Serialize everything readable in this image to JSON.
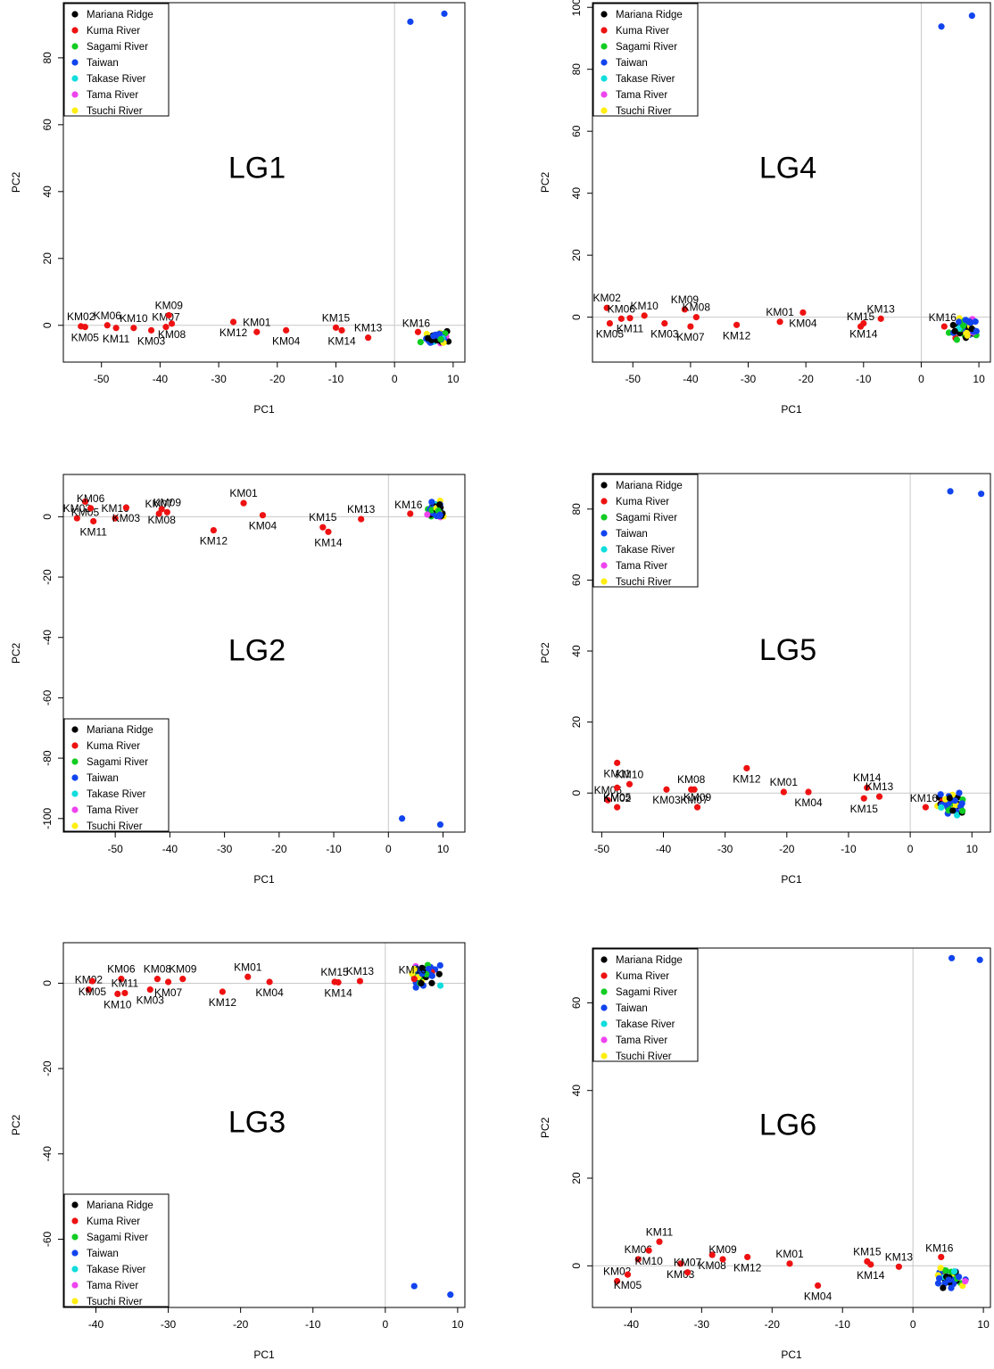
{
  "legend_labels": [
    "Mariana Ridge",
    "Kuma River",
    "Sagami River",
    "Taiwan",
    "Takase River",
    "Tama River",
    "Tsuchi River"
  ],
  "legend_colors": [
    "#000000",
    "#ee1111",
    "#11cc22",
    "#1144ee",
    "#11dddd",
    "#ee44ee",
    "#ffee11"
  ],
  "chart_data": [
    {
      "type": "scatter",
      "title": "LG1",
      "xlabel": "PC1",
      "ylabel": "PC2",
      "xlim": [
        -56.5,
        12
      ],
      "ylim": [
        -11,
        96.5
      ],
      "xticks": [
        -50,
        -40,
        -30,
        -20,
        -10,
        0,
        10
      ],
      "yticks": [
        0,
        20,
        40,
        60,
        80
      ],
      "legend_position": "top-left",
      "kuma": [
        {
          "name": "KM02",
          "x": -53.5,
          "y": -0.3
        },
        {
          "name": "KM05",
          "x": -52.8,
          "y": -0.5
        },
        {
          "name": "KM06",
          "x": -49,
          "y": 0
        },
        {
          "name": "KM11",
          "x": -47.5,
          "y": -0.8
        },
        {
          "name": "KM10",
          "x": -44.5,
          "y": -0.8
        },
        {
          "name": "KM03",
          "x": -41.5,
          "y": -1.5
        },
        {
          "name": "KM07",
          "x": -39,
          "y": -0.5
        },
        {
          "name": "KM08",
          "x": -38,
          "y": 0.5
        },
        {
          "name": "KM09",
          "x": -38.5,
          "y": 3
        },
        {
          "name": "KM12",
          "x": -27.5,
          "y": 1
        },
        {
          "name": "KM01",
          "x": -23.5,
          "y": -2
        },
        {
          "name": "KM04",
          "x": -18.5,
          "y": -1.5
        },
        {
          "name": "KM15",
          "x": -10,
          "y": -0.7
        },
        {
          "name": "KM14",
          "x": -9,
          "y": -1.5
        },
        {
          "name": "KM13",
          "x": -4.5,
          "y": -3.7
        },
        {
          "name": "KM16",
          "x": 4,
          "y": -2
        }
      ],
      "outliers": [
        {
          "x": 2.7,
          "y": 90.8
        },
        {
          "x": 8.5,
          "y": 93.2
        }
      ],
      "cluster_center": [
        7,
        -3.5
      ],
      "cluster_spread": [
        2.7,
        2.5
      ]
    },
    {
      "type": "scatter",
      "title": "LG2",
      "xlabel": "PC1",
      "ylabel": "PC2",
      "xlim": [
        -59.5,
        14
      ],
      "ylim": [
        -104.5,
        14
      ],
      "xticks": [
        -50,
        -40,
        -30,
        -20,
        -10,
        0,
        10
      ],
      "yticks": [
        0,
        -20,
        -40,
        -60,
        -80,
        -100
      ],
      "legend_position": "bottom-left",
      "kuma": [
        {
          "name": "KM02",
          "x": -57,
          "y": -0.5
        },
        {
          "name": "KM05",
          "x": -55.5,
          "y": 5
        },
        {
          "name": "KM06",
          "x": -54.5,
          "y": 2.8
        },
        {
          "name": "KM11",
          "x": -54,
          "y": -1.5
        },
        {
          "name": "KM10",
          "x": -50,
          "y": -0.5
        },
        {
          "name": "KM03",
          "x": -48,
          "y": 3
        },
        {
          "name": "KM07",
          "x": -42,
          "y": 1
        },
        {
          "name": "KM08",
          "x": -41.5,
          "y": 2.5
        },
        {
          "name": "KM09",
          "x": -40.5,
          "y": 1.5
        },
        {
          "name": "KM12",
          "x": -32,
          "y": -4.5
        },
        {
          "name": "KM01",
          "x": -26.5,
          "y": 4.5
        },
        {
          "name": "KM04",
          "x": -23,
          "y": 0.5
        },
        {
          "name": "KM15",
          "x": -12,
          "y": -3.5
        },
        {
          "name": "KM14",
          "x": -11,
          "y": -5
        },
        {
          "name": "KM13",
          "x": -5,
          "y": -0.8
        },
        {
          "name": "KM16",
          "x": 4,
          "y": 1
        }
      ],
      "outliers": [
        {
          "x": 2.5,
          "y": -100
        },
        {
          "x": 9.5,
          "y": -102
        }
      ],
      "cluster_center": [
        8.7,
        2.5
      ],
      "cluster_spread": [
        2.2,
        4.5
      ]
    },
    {
      "type": "scatter",
      "title": "LG3",
      "xlabel": "PC1",
      "ylabel": "PC2",
      "xlim": [
        -44.5,
        11
      ],
      "ylim": [
        -76,
        9.5
      ],
      "xticks": [
        -40,
        -30,
        -20,
        -10,
        0,
        10
      ],
      "yticks": [
        0,
        -20,
        -40,
        -60
      ],
      "legend_position": "bottom-left",
      "kuma": [
        {
          "name": "KM02",
          "x": -41,
          "y": -1.5
        },
        {
          "name": "KM05",
          "x": -40.5,
          "y": 0.5
        },
        {
          "name": "KM06",
          "x": -36.5,
          "y": 1
        },
        {
          "name": "KM10",
          "x": -37,
          "y": -2.5
        },
        {
          "name": "KM11",
          "x": -36,
          "y": -2.3
        },
        {
          "name": "KM03",
          "x": -32.5,
          "y": -1.5
        },
        {
          "name": "KM08",
          "x": -31.5,
          "y": 1
        },
        {
          "name": "KM07",
          "x": -30,
          "y": 0.3
        },
        {
          "name": "KM09",
          "x": -28,
          "y": 1
        },
        {
          "name": "KM12",
          "x": -22.5,
          "y": -2
        },
        {
          "name": "KM01",
          "x": -19,
          "y": 1.5
        },
        {
          "name": "KM04",
          "x": -16,
          "y": 0.3
        },
        {
          "name": "KM15",
          "x": -7,
          "y": 0.3
        },
        {
          "name": "KM14",
          "x": -6.5,
          "y": 0.2
        },
        {
          "name": "KM13",
          "x": -3.5,
          "y": 0.5
        },
        {
          "name": "KM16",
          "x": 4,
          "y": 1
        }
      ],
      "outliers": [
        {
          "x": 4,
          "y": -71
        },
        {
          "x": 9,
          "y": -73
        }
      ],
      "cluster_center": [
        5.5,
        2
      ],
      "cluster_spread": [
        2.3,
        3.5
      ]
    },
    {
      "type": "scatter",
      "title": "LG4",
      "xlabel": "PC1",
      "ylabel": "PC2",
      "xlim": [
        -57,
        12
      ],
      "ylim": [
        -14.5,
        101.5
      ],
      "xticks": [
        -50,
        -40,
        -30,
        -20,
        -10,
        0,
        10
      ],
      "yticks": [
        0,
        20,
        40,
        60,
        80,
        100
      ],
      "legend_position": "top-left",
      "kuma": [
        {
          "name": "KM02",
          "x": -54.5,
          "y": 3
        },
        {
          "name": "KM05",
          "x": -54,
          "y": -2
        },
        {
          "name": "KM06",
          "x": -52,
          "y": -0.5
        },
        {
          "name": "KM11",
          "x": -50.5,
          "y": -0.3
        },
        {
          "name": "KM10",
          "x": -48,
          "y": 0.5
        },
        {
          "name": "KM03",
          "x": -44.5,
          "y": -2
        },
        {
          "name": "KM09",
          "x": -41,
          "y": 2.5
        },
        {
          "name": "KM07",
          "x": -40,
          "y": -3
        },
        {
          "name": "KM08",
          "x": -39,
          "y": 0
        },
        {
          "name": "KM12",
          "x": -32,
          "y": -2.5
        },
        {
          "name": "KM01",
          "x": -24.5,
          "y": -1.5
        },
        {
          "name": "KM04",
          "x": -20.5,
          "y": 1.5
        },
        {
          "name": "KM15",
          "x": -10.5,
          "y": -3
        },
        {
          "name": "KM14",
          "x": -10,
          "y": -2
        },
        {
          "name": "KM13",
          "x": -7,
          "y": -0.5
        },
        {
          "name": "KM16",
          "x": 4,
          "y": -3
        }
      ],
      "outliers": [
        {
          "x": 3.5,
          "y": 93.8
        },
        {
          "x": 8.8,
          "y": 97.3
        }
      ],
      "cluster_center": [
        7.5,
        -3.5
      ],
      "cluster_spread": [
        2.8,
        4
      ]
    },
    {
      "type": "scatter",
      "title": "LG5",
      "xlabel": "PC1",
      "ylabel": "PC2",
      "xlim": [
        -51.5,
        13
      ],
      "ylim": [
        -11,
        90
      ],
      "xticks": [
        -50,
        -40,
        -30,
        -20,
        -10,
        0,
        10
      ],
      "yticks": [
        0,
        20,
        40,
        60,
        80
      ],
      "legend_position": "top-left",
      "kuma": [
        {
          "name": "KM06",
          "x": -49,
          "y": -2
        },
        {
          "name": "KM02",
          "x": -47.5,
          "y": 1.5
        },
        {
          "name": "KM05",
          "x": -47.5,
          "y": -4
        },
        {
          "name": "KM11",
          "x": -47.5,
          "y": 8.5
        },
        {
          "name": "KM10",
          "x": -45.5,
          "y": 2.5
        },
        {
          "name": "KM03",
          "x": -39.5,
          "y": 1
        },
        {
          "name": "KM08",
          "x": -35.5,
          "y": 1
        },
        {
          "name": "KM07",
          "x": -35,
          "y": 1
        },
        {
          "name": "KM09",
          "x": -34.5,
          "y": -4
        },
        {
          "name": "KM12",
          "x": -26.5,
          "y": 7
        },
        {
          "name": "KM01",
          "x": -20.5,
          "y": 0.3
        },
        {
          "name": "KM04",
          "x": -16.5,
          "y": 0.3
        },
        {
          "name": "KM14",
          "x": -7,
          "y": 1.5
        },
        {
          "name": "KM15",
          "x": -7.5,
          "y": -1.5
        },
        {
          "name": "KM13",
          "x": -5,
          "y": -1
        },
        {
          "name": "KM16",
          "x": 2.5,
          "y": -4
        }
      ],
      "outliers": [
        {
          "x": 6.5,
          "y": 85
        },
        {
          "x": 11.5,
          "y": 84.3
        }
      ],
      "cluster_center": [
        6.5,
        -3
      ],
      "cluster_spread": [
        2.5,
        3.5
      ]
    },
    {
      "type": "scatter",
      "title": "LG6",
      "xlabel": "PC1",
      "ylabel": "PC2",
      "xlim": [
        -45.5,
        11
      ],
      "ylim": [
        -9.5,
        72.5
      ],
      "xticks": [
        -40,
        -30,
        -20,
        -10,
        0,
        10
      ],
      "yticks": [
        0,
        20,
        40,
        60
      ],
      "legend_position": "top-left",
      "kuma": [
        {
          "name": "KM02",
          "x": -42,
          "y": -3.5
        },
        {
          "name": "KM05",
          "x": -40.5,
          "y": -2
        },
        {
          "name": "KM06",
          "x": -39,
          "y": 1.5
        },
        {
          "name": "KM10",
          "x": -37.5,
          "y": 3.5
        },
        {
          "name": "KM11",
          "x": -36,
          "y": 5.5
        },
        {
          "name": "KM03",
          "x": -33,
          "y": 0.5
        },
        {
          "name": "KM07",
          "x": -32,
          "y": -1.5
        },
        {
          "name": "KM08",
          "x": -28.5,
          "y": 2.5
        },
        {
          "name": "KM09",
          "x": -27,
          "y": 1.5
        },
        {
          "name": "KM12",
          "x": -23.5,
          "y": 2
        },
        {
          "name": "KM01",
          "x": -17.5,
          "y": 0.5
        },
        {
          "name": "KM04",
          "x": -13.5,
          "y": -4.5
        },
        {
          "name": "KM15",
          "x": -6.5,
          "y": 1
        },
        {
          "name": "KM14",
          "x": -6,
          "y": 0.3
        },
        {
          "name": "KM13",
          "x": -2,
          "y": -0.2
        },
        {
          "name": "KM16",
          "x": 4,
          "y": 2
        }
      ],
      "outliers": [
        {
          "x": 5.5,
          "y": 70.2
        },
        {
          "x": 9.5,
          "y": 69.8
        }
      ],
      "cluster_center": [
        5.5,
        -2.5
      ],
      "cluster_spread": [
        2.5,
        3
      ]
    }
  ]
}
